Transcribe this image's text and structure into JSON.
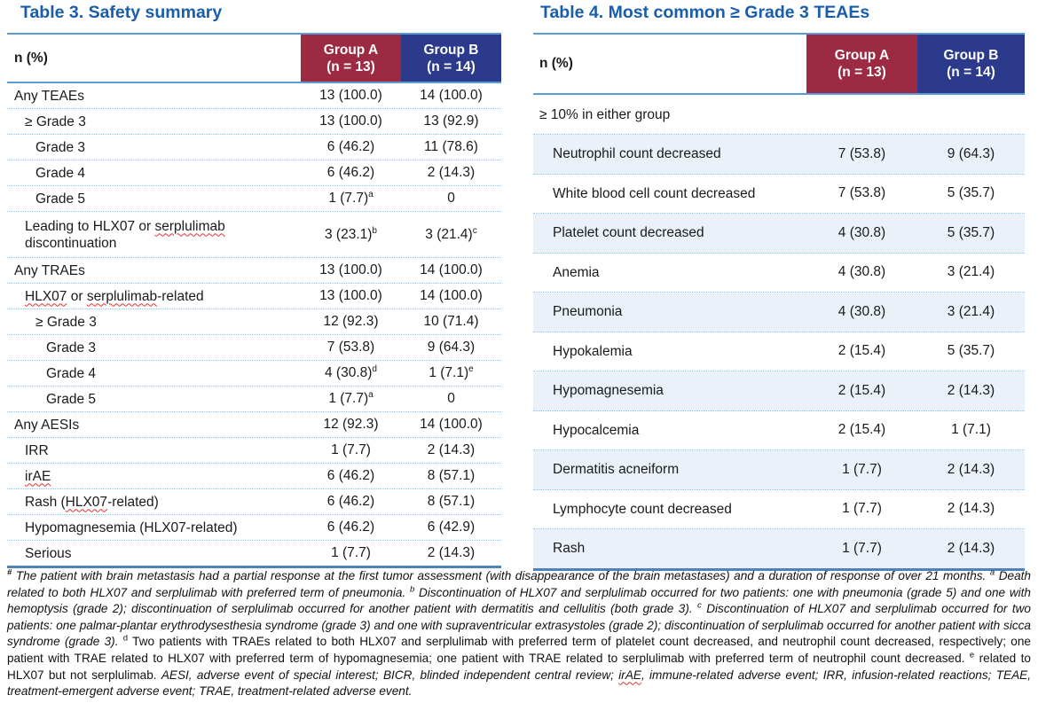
{
  "colors": {
    "title_blue": "#1a5dab",
    "group_a_maroon": "#9c2a43",
    "group_b_navy": "#2b3a8b",
    "rule_blue": "#5b9bd5",
    "bottom_rule_blue": "#4f81bd",
    "dotted_separator_blue": "#9dc3e6",
    "alt_row_bg": "#eaf1f9",
    "spellcheck_red": "#e0312e"
  },
  "table3": {
    "title": "Table 3. Safety summary",
    "header": {
      "label": "n (%)",
      "groupA_line1": "Group A",
      "groupA_line2": "(n = 13)",
      "groupB_line1": "Group B",
      "groupB_line2": "(n = 14)"
    },
    "rows": [
      {
        "label": "Any TEAEs",
        "indent": 0,
        "a": "13 (100.0)",
        "b": "14 (100.0)"
      },
      {
        "label": "≥ Grade 3",
        "indent": 1,
        "a": "13 (100.0)",
        "b": "13 (92.9)"
      },
      {
        "label": "Grade 3",
        "indent": 2,
        "a": "6 (46.2)",
        "b": "11 (78.6)"
      },
      {
        "label": "Grade 4",
        "indent": 2,
        "a": "6 (46.2)",
        "b": "2 (14.3)"
      },
      {
        "label": "Grade 5",
        "indent": 2,
        "a": "1 (7.7)",
        "a_sup": "a",
        "b": "0"
      },
      {
        "label": "Leading to HLX07 or serplulimab discontinuation",
        "indent": 1,
        "a": "3 (23.1)",
        "a_sup": "b",
        "b": "3 (21.4)",
        "b_sup": "c",
        "spell": [
          "serplulimab"
        ],
        "tall": true
      },
      {
        "label": "Any TRAEs",
        "indent": 0,
        "a": "13 (100.0)",
        "b": "14 (100.0)"
      },
      {
        "label": "HLX07 or serplulimab-related",
        "indent": 1,
        "a": "13 (100.0)",
        "b": "14 (100.0)",
        "spell": [
          "HLX07",
          "serplulimab"
        ]
      },
      {
        "label": "≥ Grade 3",
        "indent": 2,
        "a": "12 (92.3)",
        "b": "10 (71.4)"
      },
      {
        "label": "Grade 3",
        "indent": 3,
        "a": "7 (53.8)",
        "b": "9 (64.3)"
      },
      {
        "label": "Grade 4",
        "indent": 3,
        "a": "4 (30.8)",
        "a_sup": "d",
        "b": "1 (7.1)",
        "b_sup": "e"
      },
      {
        "label": "Grade 5",
        "indent": 3,
        "a": "1 (7.7)",
        "a_sup": "a",
        "b": "0"
      },
      {
        "label": "Any AESIs",
        "indent": 0,
        "a": "12 (92.3)",
        "b": "14 (100.0)"
      },
      {
        "label": "IRR",
        "indent": 1,
        "a": "1 (7.7)",
        "b": "2 (14.3)"
      },
      {
        "label": "irAE",
        "indent": 1,
        "a": "6 (46.2)",
        "b": "8 (57.1)",
        "spell": [
          "irAE"
        ]
      },
      {
        "label": "Rash (HLX07-related)",
        "indent": 1,
        "a": "6 (46.2)",
        "b": "8 (57.1)",
        "spell": [
          "HLX07"
        ]
      },
      {
        "label": "Hypomagnesemia (HLX07-related)",
        "indent": 1,
        "a": "6 (46.2)",
        "b": "6 (42.9)"
      },
      {
        "label": "Serious",
        "indent": 1,
        "a": "1 (7.7)",
        "b": "2 (14.3)"
      }
    ]
  },
  "table4": {
    "title": "Table 4. Most common ≥ Grade 3 TEAEs",
    "header": {
      "label": "n (%)",
      "groupA_line1": "Group A",
      "groupA_line2": "(n = 13)",
      "groupB_line1": "Group B",
      "groupB_line2": "(n = 14)"
    },
    "subheader": "≥ 10% in either group",
    "rows": [
      {
        "label": "Neutrophil count decreased",
        "a": "7 (53.8)",
        "b": "9 (64.3)",
        "shaded": true
      },
      {
        "label": "White blood cell count decreased",
        "a": "7 (53.8)",
        "b": "5 (35.7)"
      },
      {
        "label": "Platelet count decreased",
        "a": "4 (30.8)",
        "b": "5 (35.7)",
        "shaded": true
      },
      {
        "label": "Anemia",
        "a": "4 (30.8)",
        "b": "3 (21.4)"
      },
      {
        "label": "Pneumonia",
        "a": "4 (30.8)",
        "b": "3 (21.4)",
        "shaded": true
      },
      {
        "label": "Hypokalemia",
        "a": "2 (15.4)",
        "b": "5 (35.7)"
      },
      {
        "label": "Hypomagnesemia",
        "a": "2 (15.4)",
        "b": "2 (14.3)",
        "shaded": true
      },
      {
        "label": "Hypocalcemia",
        "a": "2 (15.4)",
        "b": "1 (7.1)"
      },
      {
        "label": "Dermatitis acneiform",
        "a": "1 (7.7)",
        "b": "2 (14.3)",
        "shaded": true
      },
      {
        "label": "Lymphocyte count decreased",
        "a": "1 (7.7)",
        "b": "2 (14.3)"
      },
      {
        "label": "Rash",
        "a": "1 (7.7)",
        "b": "2 (14.3)",
        "shaded": true
      }
    ]
  },
  "footnote": {
    "segments": [
      {
        "text": "#",
        "sup": true,
        "italic": true,
        "bold": true
      },
      {
        "text": " The patient with brain metastasis had a partial response at the first tumor assessment (with disappearance of the brain metastases) and a duration of response of over 21 months. ",
        "italic": true
      },
      {
        "text": "a",
        "sup": true,
        "italic": true
      },
      {
        "text": " Death related to both HLX07 and serplulimab with preferred term of pneumonia. ",
        "italic": true
      },
      {
        "text": "b",
        "sup": true,
        "italic": true
      },
      {
        "text": " Discontinuation of HLX07 and serplulimab occurred for two patients: one with pneumonia (grade 5) and one with hemoptysis (grade 2); discontinuation of serplulimab occurred for another patient with dermatitis and cellulitis (both grade 3). ",
        "italic": true
      },
      {
        "text": "c",
        "sup": true,
        "italic": true
      },
      {
        "text": " Discontinuation of HLX07 and serplulimab occurred for two patients: one palmar-plantar erythrodysesthesia syndrome (grade 3) and one with supraventricular extrasystoles (grade 2); discontinuation of serplulimab occurred for another patient with sicca syndrome (grade 3). ",
        "italic": true
      },
      {
        "text": "d",
        "sup": true,
        "italic": false
      },
      {
        "text": " Two patients with TRAEs related to both HLX07 and serplulimab with preferred term of platelet count decreased, and neutrophil count decreased, respectively; one patient with TRAE related to HLX07 with preferred term of hypomagnesemia; one patient with TRAE related to serplulimab with preferred term of neutrophil count decreased. ",
        "italic": false
      },
      {
        "text": "e",
        "sup": true,
        "italic": false
      },
      {
        "text": " related to HLX07 but not serplulimab. ",
        "italic": false
      },
      {
        "text": "AESI, adverse event of special interest; BICR, blinded independent central review; ",
        "italic": true
      },
      {
        "text": "irAE",
        "italic": true,
        "spell": true
      },
      {
        "text": ", immune-related adverse event; IRR, infusion-related reactions; TEAE, treatment-emergent adverse event; TRAE, treatment-related adverse event.",
        "italic": true
      }
    ]
  }
}
